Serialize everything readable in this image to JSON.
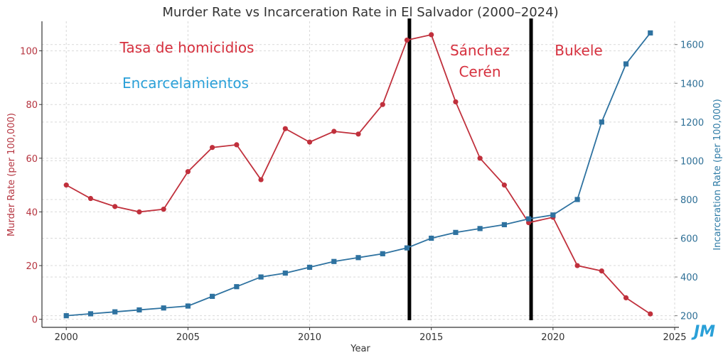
{
  "chart_data": {
    "type": "line",
    "title": "Murder Rate vs Incarceration Rate in El Salvador (2000–2024)",
    "xlabel": "Year",
    "ylabel_left": "Murder Rate (per 100,000)",
    "ylabel_right": "Incarceration Rate (per 100,000)",
    "xlim": [
      1999,
      2025
    ],
    "ylim_left": [
      -3,
      111
    ],
    "ylim_right": [
      140,
      1720
    ],
    "x_ticks": [
      2000,
      2005,
      2010,
      2015,
      2020,
      2025
    ],
    "y_ticks_left": [
      0,
      20,
      40,
      60,
      80,
      100
    ],
    "y_ticks_right": [
      200,
      400,
      600,
      800,
      1000,
      1200,
      1400,
      1600
    ],
    "grid": true,
    "x": [
      2000,
      2001,
      2002,
      2003,
      2004,
      2005,
      2006,
      2007,
      2008,
      2009,
      2010,
      2011,
      2012,
      2013,
      2014,
      2015,
      2016,
      2017,
      2018,
      2019,
      2020,
      2021,
      2022,
      2023,
      2024
    ],
    "series": [
      {
        "name": "Murder Rate",
        "axis": "left",
        "color": "#c0303c",
        "marker": "circle",
        "values": [
          50,
          45,
          42,
          40,
          41,
          55,
          64,
          65,
          52,
          71,
          66,
          70,
          69,
          80,
          104,
          106,
          81,
          60,
          50,
          36,
          38,
          20,
          18,
          8,
          2
        ]
      },
      {
        "name": "Incarceration Rate",
        "axis": "right",
        "color": "#2e72a0",
        "marker": "square",
        "values": [
          200,
          210,
          220,
          230,
          240,
          250,
          300,
          350,
          400,
          420,
          450,
          480,
          500,
          520,
          550,
          600,
          630,
          650,
          670,
          700,
          720,
          800,
          1200,
          1500,
          1660
        ]
      }
    ],
    "vertical_lines": [
      2014.1,
      2019.1
    ],
    "annotations": [
      {
        "text": "Tasa de homicidios",
        "color": "#d6303e"
      },
      {
        "text": "Encarcelamientos",
        "color": "#2aa0d8"
      },
      {
        "text": "Sánchez",
        "color": "#d6303e"
      },
      {
        "text": "Cerén",
        "color": "#d6303e"
      },
      {
        "text": "Bukele",
        "color": "#d6303e"
      }
    ],
    "watermark": "JM"
  }
}
